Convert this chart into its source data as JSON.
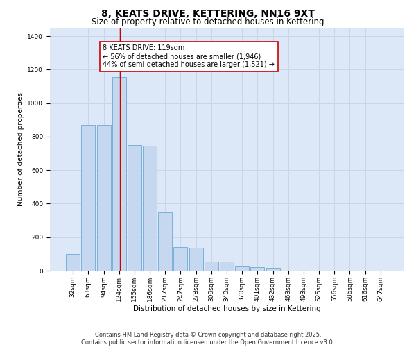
{
  "title": "8, KEATS DRIVE, KETTERING, NN16 9XT",
  "subtitle": "Size of property relative to detached houses in Kettering",
  "xlabel": "Distribution of detached houses by size in Kettering",
  "ylabel": "Number of detached properties",
  "categories": [
    "32sqm",
    "63sqm",
    "94sqm",
    "124sqm",
    "155sqm",
    "186sqm",
    "217sqm",
    "247sqm",
    "278sqm",
    "309sqm",
    "340sqm",
    "370sqm",
    "401sqm",
    "432sqm",
    "463sqm",
    "493sqm",
    "525sqm",
    "556sqm",
    "586sqm",
    "616sqm",
    "647sqm"
  ],
  "values": [
    100,
    870,
    870,
    1155,
    750,
    745,
    350,
    140,
    135,
    55,
    55,
    25,
    20,
    15,
    0,
    0,
    0,
    0,
    0,
    0,
    0
  ],
  "bar_color": "#c5d8f0",
  "bar_edge_color": "#6aaad4",
  "grid_color": "#c8d4e8",
  "background_color": "#dce8f8",
  "vline_x": 3.5,
  "vline_color": "#cc0000",
  "annotation_text": "8 KEATS DRIVE: 119sqm\n← 56% of detached houses are smaller (1,946)\n44% of semi-detached houses are larger (1,521) →",
  "annotation_box_facecolor": "#ffffff",
  "annotation_box_edgecolor": "#cc0000",
  "footer_text": "Contains HM Land Registry data © Crown copyright and database right 2025.\nContains public sector information licensed under the Open Government Licence v3.0.",
  "ylim": [
    0,
    1450
  ],
  "yticks": [
    0,
    200,
    400,
    600,
    800,
    1000,
    1200,
    1400
  ],
  "title_fontsize": 10,
  "subtitle_fontsize": 8.5,
  "axis_label_fontsize": 7.5,
  "tick_fontsize": 6.5,
  "annotation_fontsize": 7,
  "footer_fontsize": 6
}
